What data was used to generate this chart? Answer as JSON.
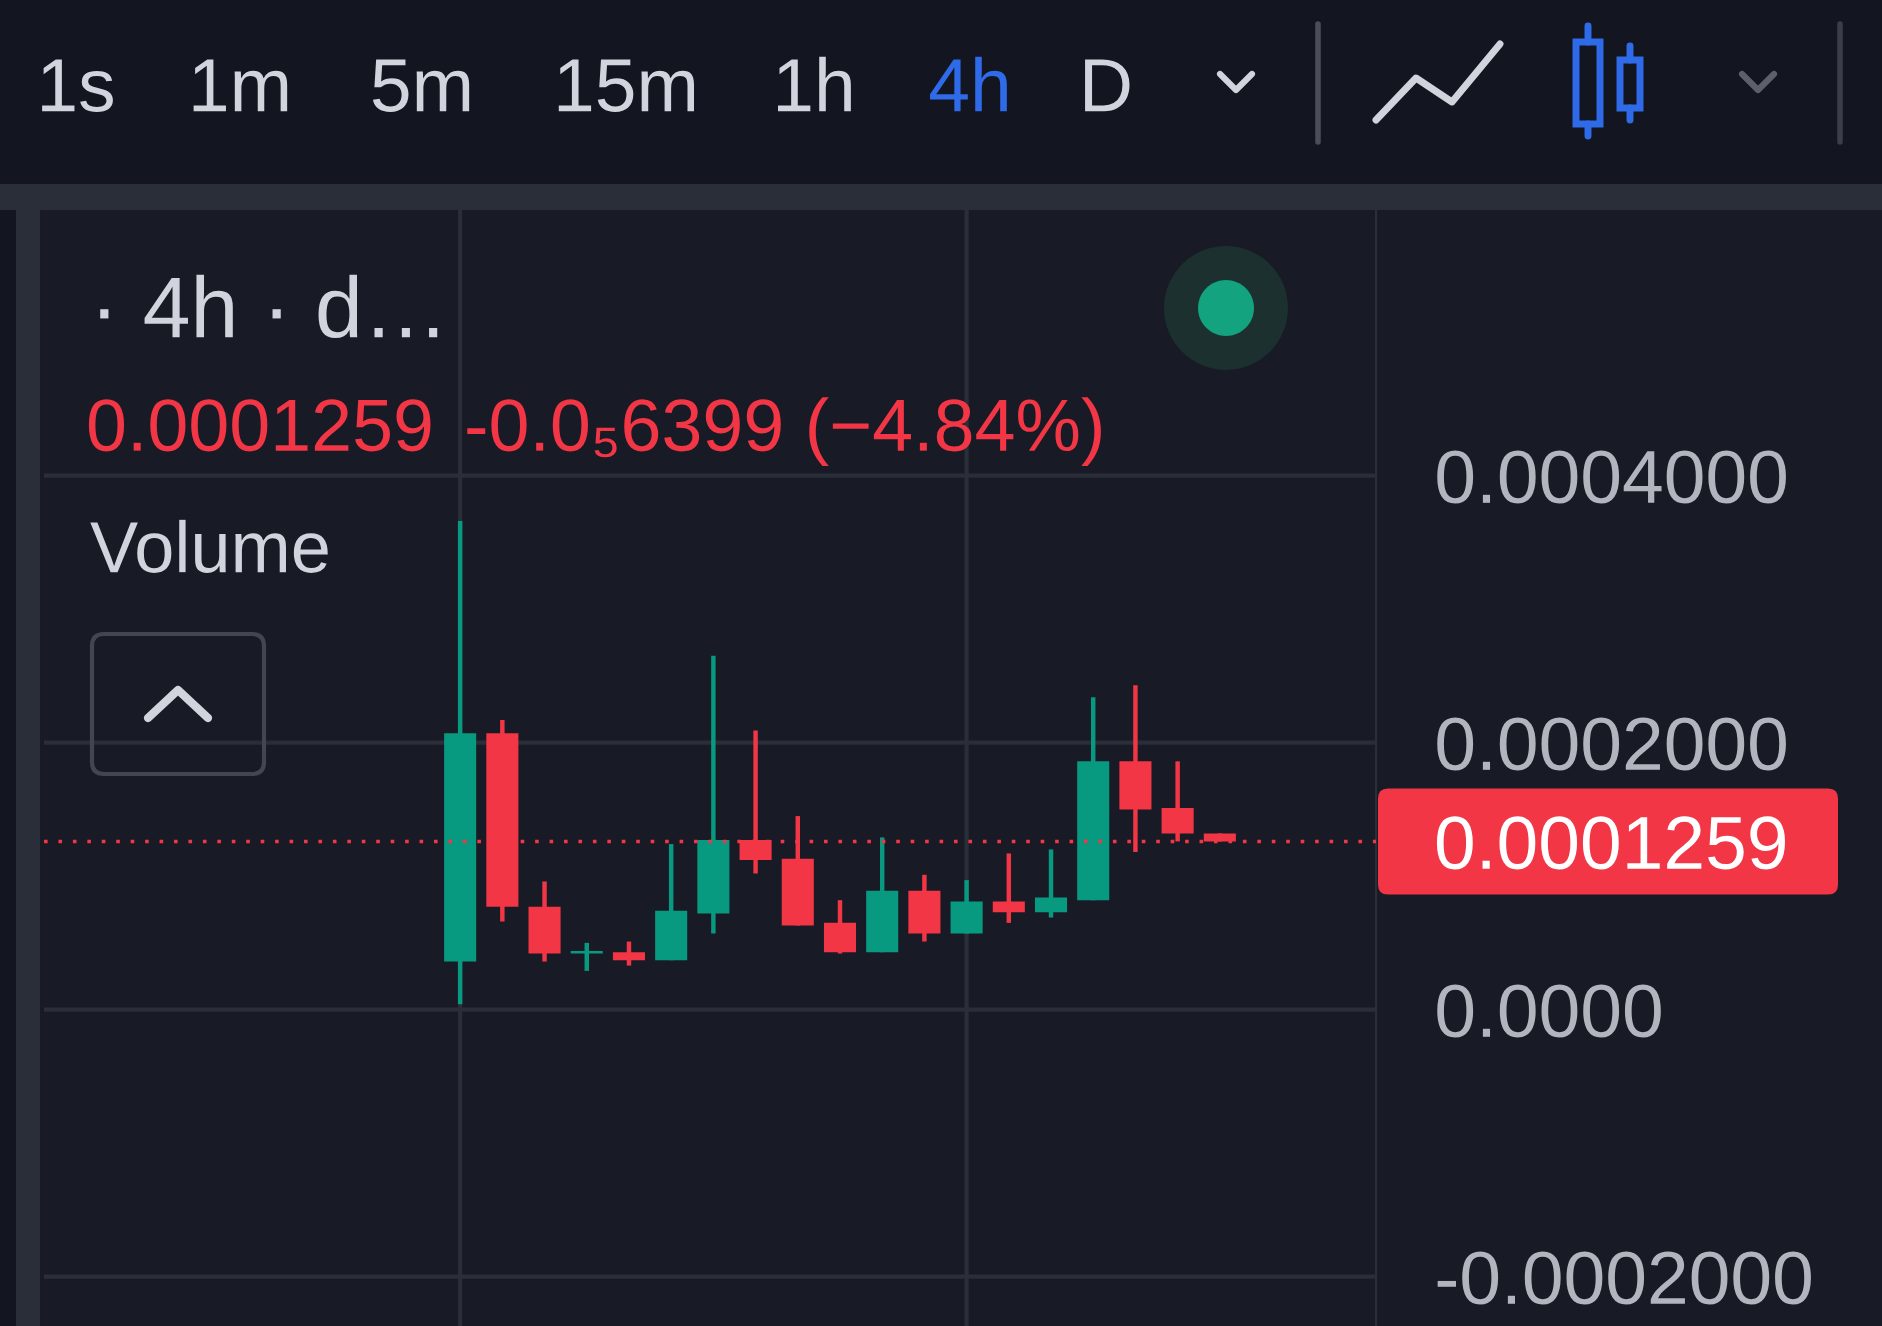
{
  "chart_data": {
    "type": "candlestick",
    "title": "· 4h · d…",
    "categories": [
      null,
      null,
      null,
      null,
      null,
      null,
      null,
      null,
      null,
      null,
      null,
      null,
      null,
      null,
      null,
      null,
      null,
      null,
      null
    ],
    "ohlc": [
      [
        3.6e-05,
        0.000366,
        4e-06,
        0.000207
      ],
      [
        0.000207,
        0.000217,
        6.6e-05,
        7.7e-05
      ],
      [
        7.7e-05,
        9.6e-05,
        3.6e-05,
        4.2e-05
      ],
      [
        4.2e-05,
        5e-05,
        2.9e-05,
        4.4e-05
      ],
      [
        4.3e-05,
        5.1e-05,
        3.3e-05,
        3.7e-05
      ],
      [
        3.7e-05,
        0.000124,
        3.7e-05,
        7.4e-05
      ],
      [
        7.2e-05,
        0.000265,
        5.7e-05,
        0.000127
      ],
      [
        0.000127,
        0.000209,
        0.000102,
        0.000112
      ],
      [
        0.000113,
        0.000145,
        6.3e-05,
        6.3e-05
      ],
      [
        6.5e-05,
        8.2e-05,
        4.2e-05,
        4.3e-05
      ],
      [
        4.3e-05,
        0.000129,
        4.3e-05,
        8.9e-05
      ],
      [
        8.9e-05,
        0.000101,
        5.1e-05,
        5.7e-05
      ],
      [
        5.7e-05,
        9.7e-05,
        5.7e-05,
        8.1e-05
      ],
      [
        8.1e-05,
        0.000117,
        6.5e-05,
        7.3e-05
      ],
      [
        7.3e-05,
        0.00012,
        6.9e-05,
        8.4e-05
      ],
      [
        8.2e-05,
        0.000234,
        8.2e-05,
        0.000186
      ],
      [
        0.000186,
        0.000243,
        0.000118,
        0.00015
      ],
      [
        0.000151,
        0.000186,
        0.000126,
        0.000132
      ],
      [
        0.000132,
        0.000132,
        0.0001259,
        0.0001259
      ]
    ],
    "colors": [
      "#089981",
      "#f23645",
      "#f23645",
      "#089981",
      "#f23645",
      "#089981",
      "#089981",
      "#f23645",
      "#f23645",
      "#f23645",
      "#089981",
      "#f23645",
      "#089981",
      "#f23645",
      "#089981",
      "#089981",
      "#f23645",
      "#f23645",
      "#f23645"
    ],
    "ylim": [
      -0.000237,
      0.000599
    ],
    "yticks": [
      {
        "value": 0.0004,
        "label": "0.0004000"
      },
      {
        "value": 0.0002,
        "label": "0.0002000"
      },
      {
        "value": 0,
        "label": "0.0000"
      },
      {
        "value": -0.0002,
        "label": "-0.0002000"
      }
    ],
    "grid": "y",
    "tick_labels": "y",
    "ref_lines": [
      {
        "axis": "y",
        "value": 0.0001259,
        "label": "0.0001259",
        "color": "#f23645",
        "line_style": "dotted"
      }
    ],
    "annotations": [
      "1s",
      "1m",
      "5m",
      "15m",
      "1h",
      "4h",
      "D",
      "0.0001259",
      "-0.0₅6399 (−4.84%)",
      "Volume"
    ]
  }
}
